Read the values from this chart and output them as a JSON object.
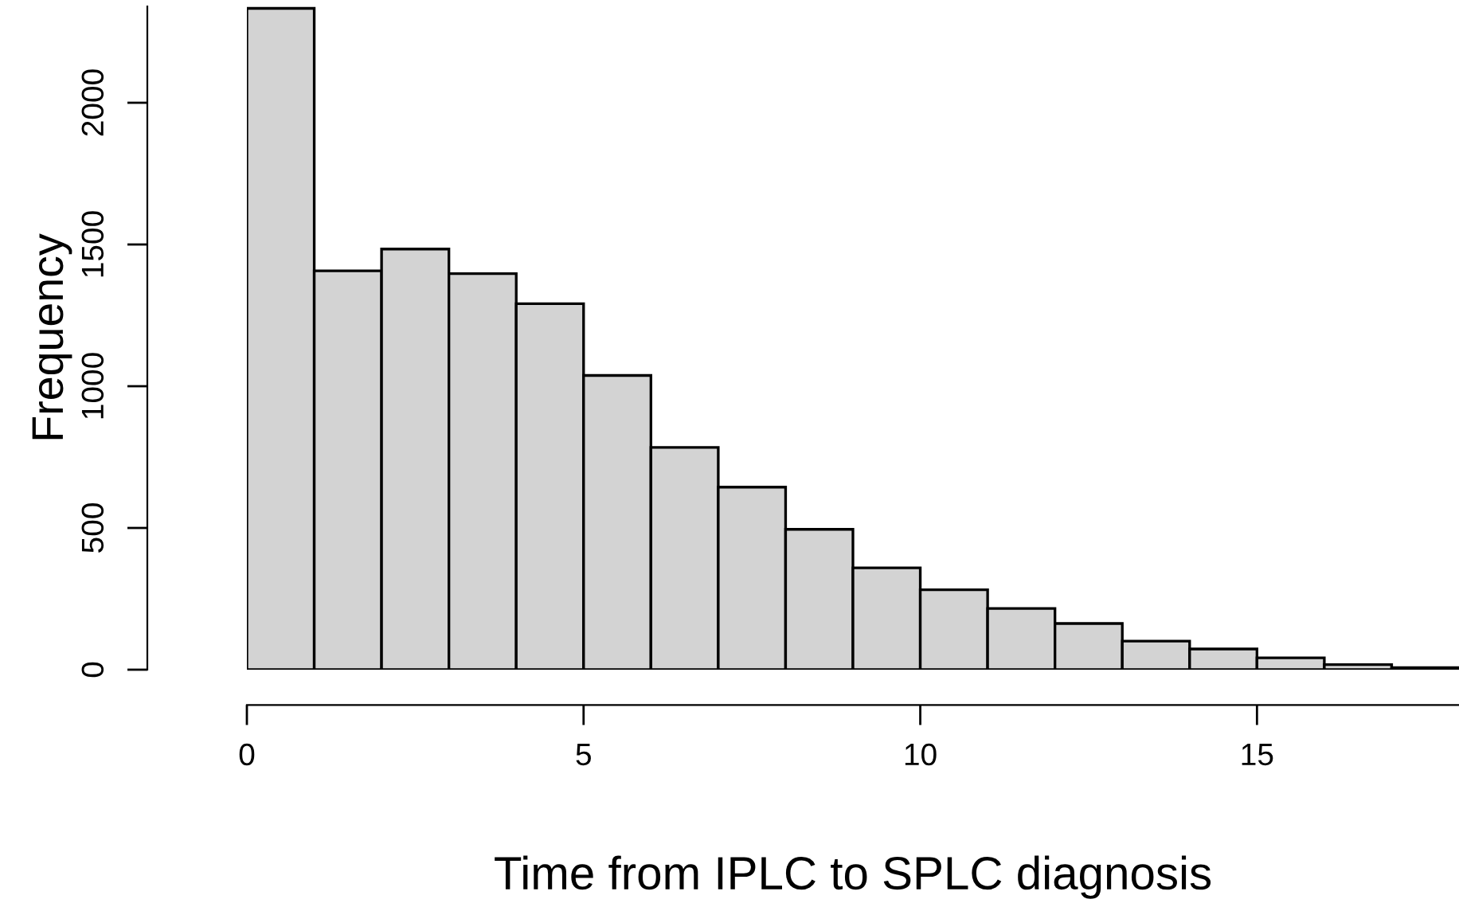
{
  "chart_data": {
    "type": "histogram",
    "xlabel": "Time from IPLC to SPLC diagnosis",
    "ylabel": "Frequency",
    "bins": [
      0,
      1,
      2,
      3,
      4,
      5,
      6,
      7,
      8,
      9,
      10,
      11,
      12,
      13,
      14,
      15,
      16,
      17,
      18
    ],
    "values": [
      2333,
      1407,
      1484,
      1397,
      1291,
      1038,
      784,
      644,
      495,
      359,
      282,
      216,
      163,
      101,
      73,
      42,
      18,
      7
    ],
    "color": "#d3d3d3",
    "xlim": [
      0,
      18
    ],
    "ylim": [
      0,
      2340
    ],
    "xticks": [
      0,
      5,
      10,
      15
    ],
    "yticks": [
      0,
      500,
      1000,
      1500,
      2000
    ],
    "grid": false
  }
}
